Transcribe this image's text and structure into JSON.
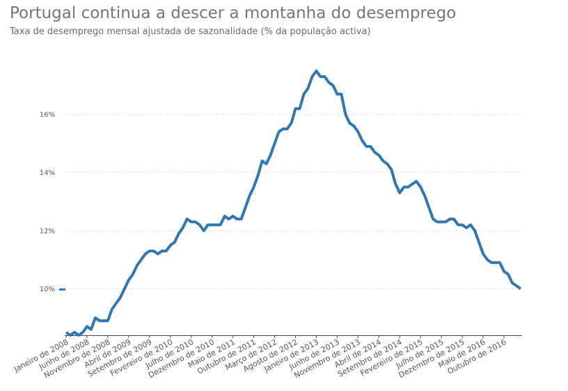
{
  "chart_data": {
    "type": "line",
    "title": "Portugal continua a descer a montanha do desemprego",
    "subtitle": "Taxa de desemprego mensal ajustada de sazonalidade (% da população activa)",
    "xlabel": "",
    "ylabel": "",
    "ylim": [
      8.4,
      17.9
    ],
    "y_ticks": [
      10,
      12,
      14,
      16
    ],
    "y_tick_labels": [
      "10%",
      "12%",
      "14%",
      "16%"
    ],
    "grid": true,
    "legend": "none",
    "x_tick_indices": [
      0,
      5,
      10,
      15,
      20,
      25,
      30,
      35,
      40,
      45,
      50,
      55,
      60,
      65,
      70,
      75,
      80,
      85,
      90,
      95,
      100,
      105
    ],
    "x_tick_labels": [
      "Janeiro de 2008",
      "Junho de 2008",
      "Novembro de 2008",
      "Abril de 2009",
      "Setembro de 2009",
      "Fevereiro de 2010",
      "Julho de 2010",
      "Dezembro de 2010",
      "Maio de 2011",
      "Outubro de 2011",
      "Março de 2012",
      "Agosto de 2012",
      "Janeiro de 2013",
      "Junho de 2013",
      "Novembro de 2013",
      "Abril de 2014",
      "Setembro de 2014",
      "Fevereiro de 2015",
      "Julho de 2015",
      "Dezembro de 2015",
      "Maio de 2016",
      "Outubro de 2016"
    ],
    "series": [
      {
        "color": "#2e77b5",
        "values": [
          8.5,
          8.4,
          8.5,
          8.4,
          8.5,
          8.7,
          8.6,
          9.0,
          8.9,
          8.9,
          8.9,
          9.3,
          9.5,
          9.7,
          10.0,
          10.3,
          10.5,
          10.8,
          11.0,
          11.2,
          11.3,
          11.3,
          11.2,
          11.3,
          11.3,
          11.5,
          11.6,
          11.9,
          12.1,
          12.4,
          12.3,
          12.3,
          12.2,
          12.0,
          12.2,
          12.2,
          12.2,
          12.2,
          12.5,
          12.4,
          12.5,
          12.4,
          12.4,
          12.8,
          13.2,
          13.5,
          13.9,
          14.4,
          14.3,
          14.6,
          15.0,
          15.4,
          15.5,
          15.5,
          15.7,
          16.2,
          16.2,
          16.7,
          16.9,
          17.3,
          17.5,
          17.3,
          17.3,
          17.1,
          17.0,
          16.7,
          16.7,
          16.0,
          15.7,
          15.6,
          15.4,
          15.1,
          14.9,
          14.9,
          14.7,
          14.6,
          14.4,
          14.3,
          14.1,
          13.6,
          13.3,
          13.5,
          13.5,
          13.6,
          13.7,
          13.5,
          13.2,
          12.8,
          12.4,
          12.3,
          12.3,
          12.3,
          12.4,
          12.4,
          12.2,
          12.2,
          12.1,
          12.2,
          12.0,
          11.6,
          11.2,
          11.0,
          10.9,
          10.9,
          10.9,
          10.6,
          10.5,
          10.2,
          10.1,
          10.0
        ]
      }
    ]
  }
}
